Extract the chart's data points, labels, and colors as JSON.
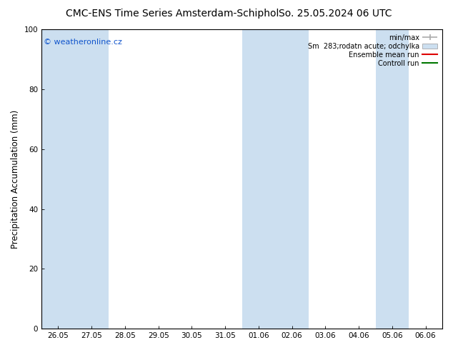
{
  "title_left": "CMC-ENS Time Series Amsterdam-Schiphol",
  "title_right": "So. 25.05.2024 06 UTC",
  "ylabel": "Precipitation Accumulation (mm)",
  "watermark": "© weatheronline.cz",
  "ylim": [
    0,
    100
  ],
  "yticks": [
    0,
    20,
    40,
    60,
    80,
    100
  ],
  "x_tick_labels": [
    "26.05",
    "27.05",
    "28.05",
    "29.05",
    "30.05",
    "31.05",
    "01.06",
    "02.06",
    "03.06",
    "04.06",
    "05.06",
    "06.06"
  ],
  "shaded_columns": [
    0,
    1,
    6,
    7,
    10
  ],
  "background_color": "#ffffff",
  "plot_bg_color": "#ffffff",
  "shade_color": "#ccdff0",
  "legend_entries": [
    "min/max",
    "Sm  283;rodatn acute; odchylka",
    "Ensemble mean run",
    "Controll run"
  ],
  "minmax_color": "#aaaaaa",
  "sm_color": "#ccdff0",
  "ensemble_color": "#dd0000",
  "control_color": "#007700",
  "title_fontsize": 10,
  "tick_fontsize": 7.5,
  "ylabel_fontsize": 8.5,
  "watermark_color": "#1155cc",
  "border_color": "#000000"
}
